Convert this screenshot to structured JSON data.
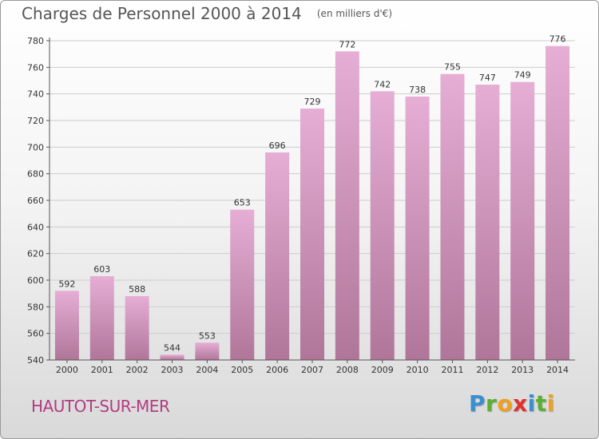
{
  "header": {
    "title": "Charges de Personnel 2000 à 2014",
    "subtitle": "(en milliers d'€)"
  },
  "footer": {
    "city": "HAUTOT-SUR-MER",
    "logo_letters": [
      {
        "char": "P",
        "color": "#3a8fd0"
      },
      {
        "char": "r",
        "color": "#5ab030"
      },
      {
        "char": "o",
        "color": "#f0a020"
      },
      {
        "char": "x",
        "color": "#e03030"
      },
      {
        "char": "i",
        "color": "#3a8fd0"
      },
      {
        "char": "t",
        "color": "#5ab030"
      },
      {
        "char": "i",
        "color": "#f0a020"
      }
    ]
  },
  "chart_data": {
    "type": "bar",
    "title": "Charges de Personnel 2000 à 2014",
    "subtitle": "(en milliers d'€)",
    "categories": [
      "2000",
      "2001",
      "2002",
      "2003",
      "2004",
      "2005",
      "2006",
      "2007",
      "2008",
      "2009",
      "2010",
      "2011",
      "2012",
      "2013",
      "2014"
    ],
    "values": [
      592,
      603,
      588,
      544,
      553,
      653,
      696,
      729,
      772,
      742,
      738,
      755,
      747,
      749,
      776
    ],
    "ylim": [
      540,
      780
    ],
    "yticks": [
      540,
      560,
      580,
      600,
      620,
      640,
      660,
      680,
      700,
      720,
      740,
      760,
      780
    ],
    "grid": true,
    "bar_color_top": "#e6aed5",
    "bar_color_bottom": "#b0769a",
    "gridline_color": "#cccccc"
  }
}
